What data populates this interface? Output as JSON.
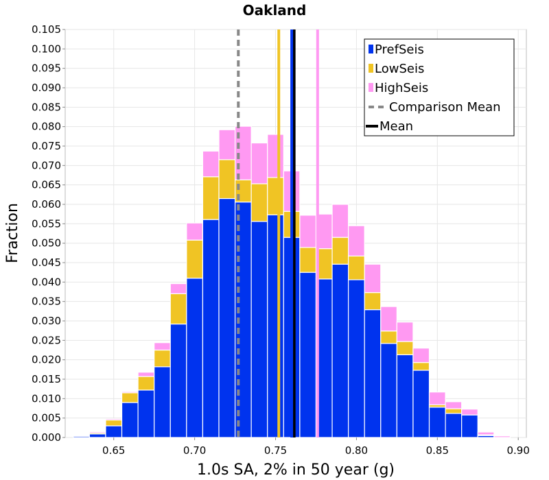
{
  "chart_data": {
    "type": "bar",
    "stacked": true,
    "title": "Oakland",
    "xlabel": "1.0s SA, 2% in 50 year (g)",
    "ylabel": "Fraction",
    "xlim": [
      0.62,
      0.905
    ],
    "ylim": [
      0,
      0.105
    ],
    "xticks": [
      "0.65",
      "0.70",
      "0.75",
      "0.80",
      "0.85",
      "0.90"
    ],
    "yticks": [
      "0.000",
      "0.005",
      "0.010",
      "0.015",
      "0.020",
      "0.025",
      "0.030",
      "0.035",
      "0.040",
      "0.045",
      "0.050",
      "0.055",
      "0.060",
      "0.065",
      "0.070",
      "0.075",
      "0.080",
      "0.085",
      "0.090",
      "0.095",
      "0.100",
      "0.105"
    ],
    "grid": true,
    "legend_position": "top-right",
    "bin_width": 0.01,
    "x": [
      0.63,
      0.64,
      0.65,
      0.66,
      0.67,
      0.68,
      0.69,
      0.7,
      0.71,
      0.72,
      0.73,
      0.74,
      0.75,
      0.76,
      0.77,
      0.78,
      0.79,
      0.8,
      0.81,
      0.82,
      0.83,
      0.84,
      0.85,
      0.86,
      0.87,
      0.88,
      0.89
    ],
    "series": [
      {
        "name": "PrefSeis",
        "color": "#0033ee",
        "values": [
          0.0003,
          0.0009,
          0.003,
          0.009,
          0.0122,
          0.0182,
          0.0292,
          0.041,
          0.0561,
          0.0615,
          0.0606,
          0.0556,
          0.0573,
          0.0515,
          0.0425,
          0.0408,
          0.0446,
          0.0406,
          0.0329,
          0.0242,
          0.0213,
          0.0173,
          0.0078,
          0.0062,
          0.0058,
          0.0005,
          0.0
        ]
      },
      {
        "name": "LowSeis",
        "color": "#f0c424",
        "values": [
          0.0,
          0.0003,
          0.0015,
          0.0025,
          0.0035,
          0.0043,
          0.0078,
          0.0098,
          0.011,
          0.01,
          0.0057,
          0.0097,
          0.0096,
          0.0067,
          0.0064,
          0.0078,
          0.0069,
          0.0061,
          0.0044,
          0.0032,
          0.0034,
          0.002,
          0.0006,
          0.0012,
          0.0,
          0.0002,
          0.0
        ]
      },
      {
        "name": "HighSeis",
        "color": "#ff99f2",
        "values": [
          0.0,
          0.0003,
          0.0003,
          0.0003,
          0.0011,
          0.0019,
          0.0026,
          0.0044,
          0.0066,
          0.0077,
          0.0138,
          0.0105,
          0.0111,
          0.0104,
          0.0083,
          0.0089,
          0.0085,
          0.0078,
          0.0073,
          0.0063,
          0.005,
          0.0037,
          0.0033,
          0.0018,
          0.0015,
          0.0007,
          0.0004
        ]
      }
    ],
    "vertical_lines": [
      {
        "name": "Comparison Mean",
        "x": 0.727,
        "y_top": 0.105,
        "color": "#888888",
        "style": "dashed"
      },
      {
        "name": "Mean",
        "x": 0.7615,
        "y_top": 0.105,
        "color": "#000000",
        "style": "solid"
      },
      {
        "series": "PrefSeis",
        "x": 0.76,
        "y_top": 0.105,
        "color": "#0033ee",
        "style": "solid"
      },
      {
        "series": "LowSeis",
        "x": 0.752,
        "y_top": 0.105,
        "color": "#f0c424",
        "style": "solid"
      },
      {
        "series": "HighSeis",
        "x": 0.776,
        "y_top": 0.105,
        "color": "#ff99f2",
        "style": "solid"
      }
    ],
    "legend": [
      {
        "label": "PrefSeis",
        "kind": "box",
        "color": "#0033ee"
      },
      {
        "label": "LowSeis",
        "kind": "box",
        "color": "#f0c424"
      },
      {
        "label": "HighSeis",
        "kind": "box",
        "color": "#ff99f2"
      },
      {
        "label": "Comparison Mean",
        "kind": "dashed-line",
        "color": "#888888"
      },
      {
        "label": "Mean",
        "kind": "solid-line",
        "color": "#000000"
      }
    ]
  }
}
